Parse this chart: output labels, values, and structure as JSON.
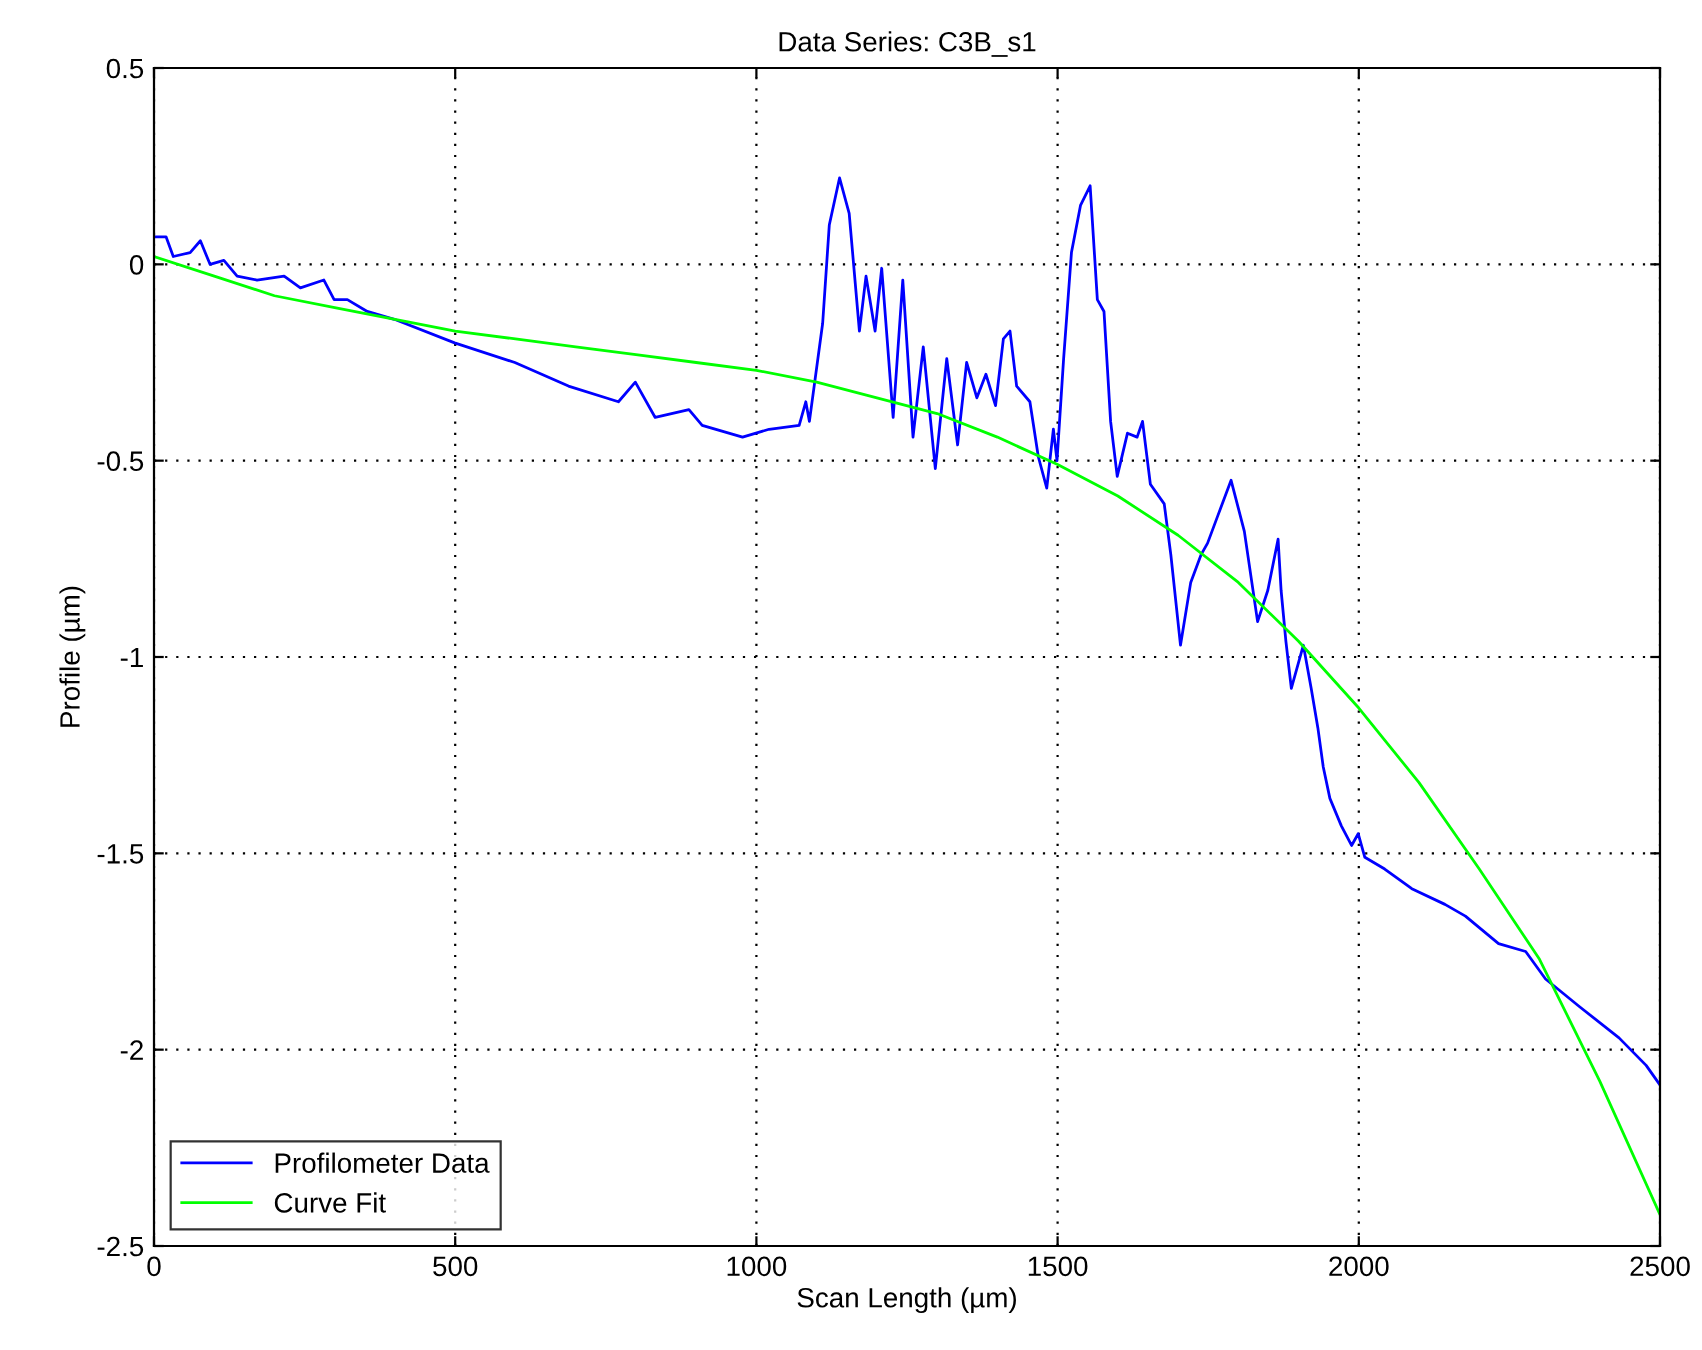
{
  "chart_data": {
    "type": "line",
    "title": "Data Series: C3B_s1",
    "xlabel": "Scan Length (µm)",
    "ylabel": "Profile (µm)",
    "series": [
      {
        "name": "Profilometer Data",
        "color": "#0000ff",
        "x": [
          0,
          20,
          32,
          60,
          77,
          93,
          116,
          138,
          171,
          216,
          243,
          282,
          299,
          321,
          354,
          399,
          499,
          599,
          688,
          771,
          799,
          832,
          888,
          910,
          977,
          1021,
          1071,
          1082,
          1088,
          1110,
          1121,
          1138,
          1154,
          1171,
          1182,
          1197,
          1208,
          1227,
          1243,
          1260,
          1277,
          1297,
          1316,
          1334,
          1349,
          1366,
          1381,
          1397,
          1410,
          1421,
          1432,
          1454,
          1468,
          1482,
          1493,
          1499,
          1510,
          1523,
          1538,
          1554,
          1566,
          1577,
          1588,
          1599,
          1616,
          1632,
          1641,
          1654,
          1677,
          1688,
          1704,
          1721,
          1738,
          1749,
          1766,
          1788,
          1810,
          1832,
          1849,
          1866,
          1871,
          1879,
          1888,
          1908,
          1921,
          1932,
          1941,
          1952,
          1971,
          1988,
          1999,
          2010,
          2043,
          2088,
          2143,
          2177,
          2232,
          2277,
          2310,
          2366,
          2432,
          2477,
          2500
        ],
        "values": [
          0.07,
          0.07,
          0.02,
          0.03,
          0.06,
          0.0,
          0.01,
          -0.03,
          -0.04,
          -0.03,
          -0.06,
          -0.04,
          -0.09,
          -0.09,
          -0.12,
          -0.14,
          -0.2,
          -0.25,
          -0.31,
          -0.35,
          -0.3,
          -0.39,
          -0.37,
          -0.41,
          -0.44,
          -0.42,
          -0.41,
          -0.35,
          -0.4,
          -0.15,
          0.1,
          0.22,
          0.13,
          -0.17,
          -0.03,
          -0.17,
          -0.01,
          -0.39,
          -0.04,
          -0.44,
          -0.21,
          -0.52,
          -0.24,
          -0.46,
          -0.25,
          -0.34,
          -0.28,
          -0.36,
          -0.19,
          -0.17,
          -0.31,
          -0.35,
          -0.49,
          -0.57,
          -0.42,
          -0.5,
          -0.24,
          0.03,
          0.15,
          0.2,
          -0.09,
          -0.12,
          -0.4,
          -0.54,
          -0.43,
          -0.44,
          -0.4,
          -0.56,
          -0.61,
          -0.74,
          -0.97,
          -0.81,
          -0.74,
          -0.71,
          -0.64,
          -0.55,
          -0.68,
          -0.91,
          -0.83,
          -0.7,
          -0.83,
          -0.96,
          -1.08,
          -0.97,
          -1.08,
          -1.18,
          -1.28,
          -1.36,
          -1.43,
          -1.48,
          -1.45,
          -1.51,
          -1.54,
          -1.59,
          -1.63,
          -1.66,
          -1.73,
          -1.75,
          -1.82,
          -1.89,
          -1.97,
          -2.04,
          -2.09
        ]
      },
      {
        "name": "Curve Fit",
        "color": "#00ff00",
        "x": [
          0,
          100,
          200,
          300,
          400,
          500,
          600,
          700,
          800,
          900,
          1000,
          1100,
          1200,
          1300,
          1400,
          1500,
          1600,
          1700,
          1800,
          1900,
          2000,
          2100,
          2200,
          2300,
          2400,
          2500
        ],
        "values": [
          0.02,
          -0.03,
          -0.08,
          -0.11,
          -0.14,
          -0.17,
          -0.19,
          -0.21,
          -0.23,
          -0.25,
          -0.27,
          -0.3,
          -0.34,
          -0.38,
          -0.44,
          -0.51,
          -0.59,
          -0.69,
          -0.81,
          -0.96,
          -1.13,
          -1.32,
          -1.54,
          -1.77,
          -2.08,
          -2.42
        ]
      }
    ],
    "xlim": [
      0,
      2500
    ],
    "xticks": [
      0,
      500,
      1000,
      1500,
      2000,
      2500
    ],
    "ylim": [
      -2.5,
      0.5
    ],
    "yticks": [
      {
        "value": -2.5,
        "label": "-2.5"
      },
      {
        "value": -2,
        "label": "-2"
      },
      {
        "value": -1.5,
        "label": "-1.5"
      },
      {
        "value": -1,
        "label": "-1"
      },
      {
        "value": -0.5,
        "label": "-0.5"
      },
      0,
      0.5
    ],
    "grid": true,
    "legend": "bottom left",
    "line_style": "solid",
    "marker": "none"
  }
}
